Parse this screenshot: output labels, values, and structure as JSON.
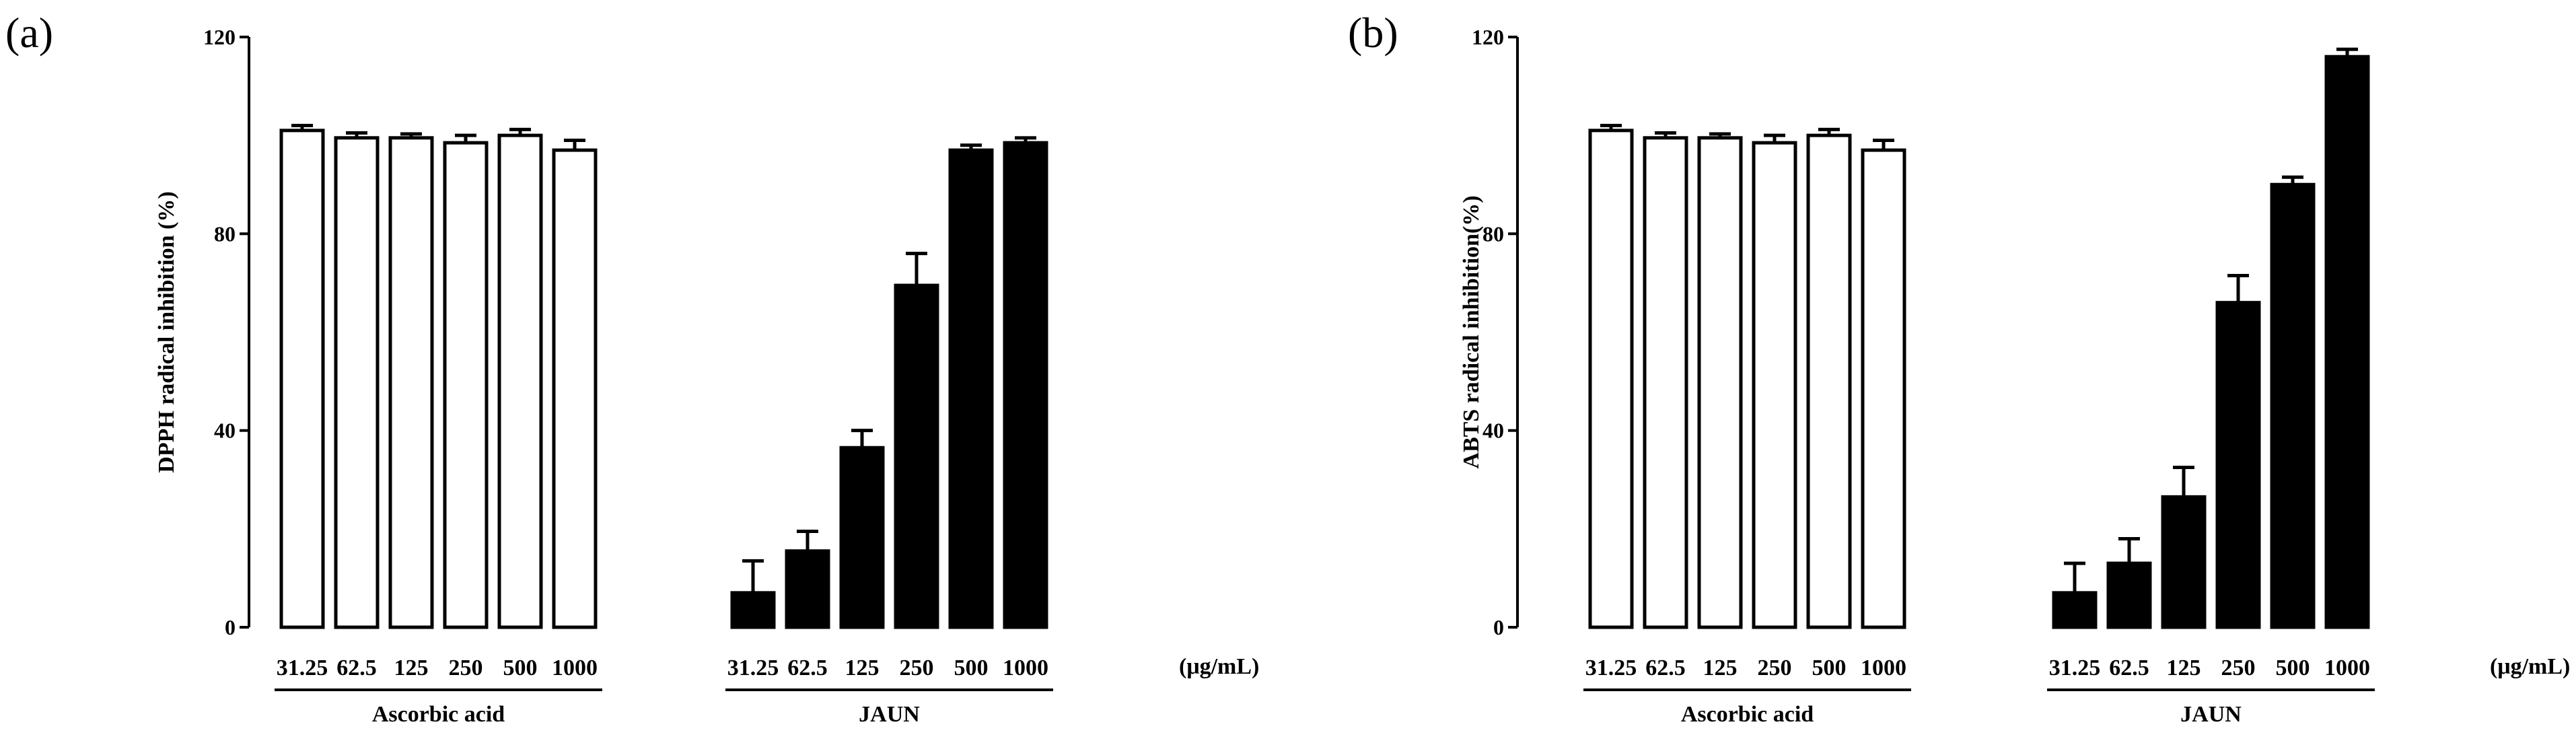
{
  "chart_data": [
    {
      "panel": "(a)",
      "type": "bar",
      "ylabel": "DPPH radical inhibition (%)",
      "ylim": [
        0,
        120
      ],
      "yticks": [
        "0",
        "40",
        "80",
        "120"
      ],
      "unit_label": "(μg/mL)",
      "groups": [
        {
          "name": "Ascorbic acid",
          "fill": "#ffffff",
          "categories": [
            "31.25",
            "62.5",
            "125",
            "250",
            "500",
            "1000"
          ],
          "values": [
            101,
            99.5,
            99.5,
            98.5,
            100,
            97
          ],
          "errors": [
            1,
            1,
            0.8,
            1.5,
            1.2,
            2
          ]
        },
        {
          "name": "JAUN",
          "fill": "#000000",
          "categories": [
            "31.25",
            "62.5",
            "125",
            "250",
            "500",
            "1000"
          ],
          "values": [
            7,
            15.5,
            36.5,
            69.5,
            97,
            98.5
          ],
          "errors": [
            6.5,
            4,
            3.5,
            6.5,
            1,
            1
          ]
        }
      ]
    },
    {
      "panel": "(b)",
      "type": "bar",
      "ylabel": "ABTS radical inhibition(%)",
      "ylim": [
        0,
        120
      ],
      "yticks": [
        "0",
        "40",
        "80",
        "120"
      ],
      "unit_label": "(μg/mL)",
      "groups": [
        {
          "name": "Ascorbic acid",
          "fill": "#ffffff",
          "categories": [
            "31.25",
            "62.5",
            "125",
            "250",
            "500",
            "1000"
          ],
          "values": [
            101,
            99.5,
            99.5,
            98.5,
            100,
            97
          ],
          "errors": [
            1,
            1,
            0.8,
            1.5,
            1.2,
            2
          ]
        },
        {
          "name": "JAUN",
          "fill": "#000000",
          "categories": [
            "31.25",
            "62.5",
            "125",
            "250",
            "500",
            "1000"
          ],
          "values": [
            7,
            13,
            26.5,
            66,
            90,
            116
          ],
          "errors": [
            6,
            5,
            6,
            5.5,
            1.5,
            1.5
          ]
        }
      ]
    }
  ]
}
